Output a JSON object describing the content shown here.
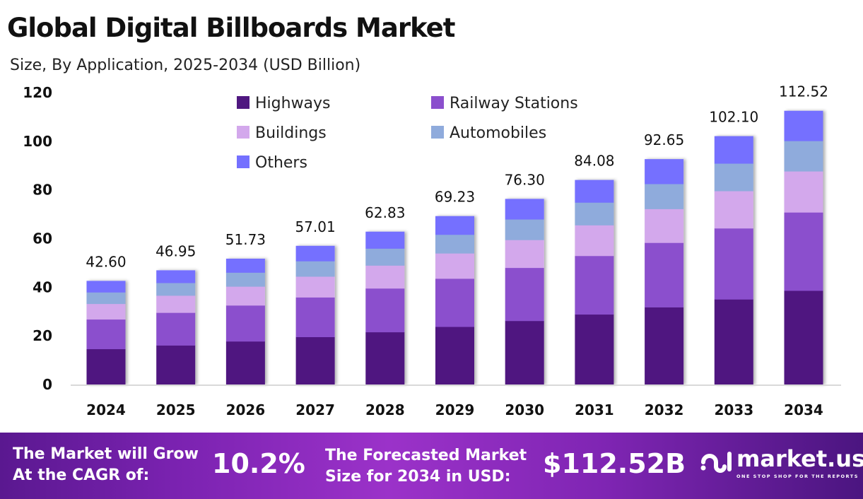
{
  "header": {
    "title": "Global Digital Billboards Market",
    "subtitle": "Size, By Application, 2025-2034 (USD Billion)"
  },
  "chart_data": {
    "type": "bar",
    "stacked": true,
    "title": "Global Digital Billboards Market",
    "subtitle": "Size, By Application, 2025-2034 (USD Billion)",
    "xlabel": "",
    "ylabel": "",
    "ylim": [
      0,
      120
    ],
    "yticks": [
      "0",
      "20",
      "40",
      "60",
      "80",
      "100",
      "120"
    ],
    "grid": false,
    "legend_position": "top-left",
    "categories": [
      "2024",
      "2025",
      "2026",
      "2027",
      "2028",
      "2029",
      "2030",
      "2031",
      "2032",
      "2033",
      "2034"
    ],
    "totals": [
      42.6,
      46.95,
      51.73,
      57.01,
      62.83,
      69.23,
      76.3,
      84.08,
      92.65,
      102.1,
      112.52
    ],
    "total_labels": [
      "42.60",
      "46.95",
      "51.73",
      "57.01",
      "62.83",
      "69.23",
      "76.30",
      "84.08",
      "92.65",
      "102.10",
      "112.52"
    ],
    "series": [
      {
        "name": "Highways",
        "color": "#4f1780",
        "values": [
          14.61,
          16.1,
          17.74,
          19.55,
          21.55,
          23.75,
          26.17,
          28.84,
          31.78,
          35.02,
          38.59
        ]
      },
      {
        "name": "Railway Stations",
        "color": "#8b4fcd",
        "values": [
          12.18,
          13.43,
          14.79,
          16.3,
          17.97,
          19.8,
          21.82,
          24.05,
          26.5,
          29.2,
          32.18
        ]
      },
      {
        "name": "Buildings",
        "color": "#d3a8ec",
        "values": [
          6.39,
          7.04,
          7.76,
          8.55,
          9.42,
          10.38,
          11.45,
          12.61,
          13.9,
          15.32,
          16.88
        ]
      },
      {
        "name": "Automobiles",
        "color": "#8fabdc",
        "values": [
          4.73,
          5.21,
          5.74,
          6.33,
          6.97,
          7.68,
          8.47,
          9.33,
          10.28,
          11.33,
          12.49
        ]
      },
      {
        "name": "Others",
        "color": "#7470ff",
        "values": [
          4.69,
          5.17,
          5.7,
          6.28,
          6.92,
          7.62,
          8.39,
          9.25,
          10.19,
          11.23,
          12.38
        ]
      }
    ]
  },
  "footer": {
    "cagr_label_1": "The Market will Grow",
    "cagr_label_2": "At the CAGR of:",
    "cagr_value": "10.2%",
    "size_label_1": "The Forecasted Market",
    "size_label_2": "Size for 2034 in USD:",
    "size_value": "$112.52B",
    "logo_name": "market.us",
    "logo_tagline": "ONE STOP SHOP FOR THE REPORTS"
  }
}
